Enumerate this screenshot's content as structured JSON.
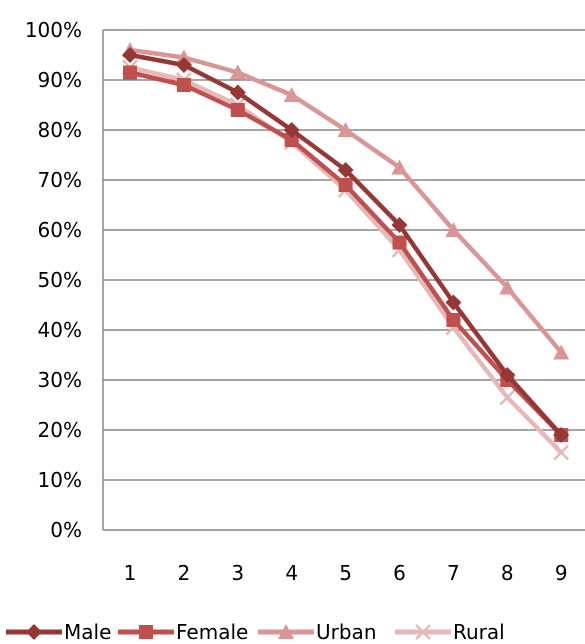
{
  "chart_data": {
    "type": "line",
    "title": "",
    "xlabel": "",
    "ylabel": "",
    "x": [
      1,
      2,
      3,
      4,
      5,
      6,
      7,
      8,
      9
    ],
    "x_tick_labels": [
      "1",
      "2",
      "3",
      "4",
      "5",
      "6",
      "7",
      "8",
      "9"
    ],
    "ylim": [
      0,
      100
    ],
    "y_ticks": [
      0,
      10,
      20,
      30,
      40,
      50,
      60,
      70,
      80,
      90,
      100
    ],
    "y_tick_labels": [
      "0%",
      "10%",
      "20%",
      "30%",
      "40%",
      "50%",
      "60%",
      "70%",
      "80%",
      "90%",
      "100%"
    ],
    "grid": "horizontal",
    "legend_position": "bottom",
    "series": [
      {
        "name": "Male",
        "values": [
          95,
          93,
          87.5,
          80,
          72,
          61,
          45.5,
          31,
          19
        ],
        "color": "#953735",
        "marker": "diamond"
      },
      {
        "name": "Female",
        "values": [
          91.5,
          89,
          84,
          78,
          69,
          57.5,
          42,
          30,
          19
        ],
        "color": "#C0504D",
        "marker": "square"
      },
      {
        "name": "Urban",
        "values": [
          96,
          94.5,
          91.5,
          87,
          80,
          72.5,
          60,
          48.5,
          35.5
        ],
        "color": "#D99694",
        "marker": "triangle"
      },
      {
        "name": "Rural",
        "values": [
          92.5,
          90,
          85,
          77.5,
          68,
          56,
          40.5,
          26.5,
          15.5
        ],
        "color": "#E6B9B8",
        "marker": "x"
      }
    ]
  }
}
